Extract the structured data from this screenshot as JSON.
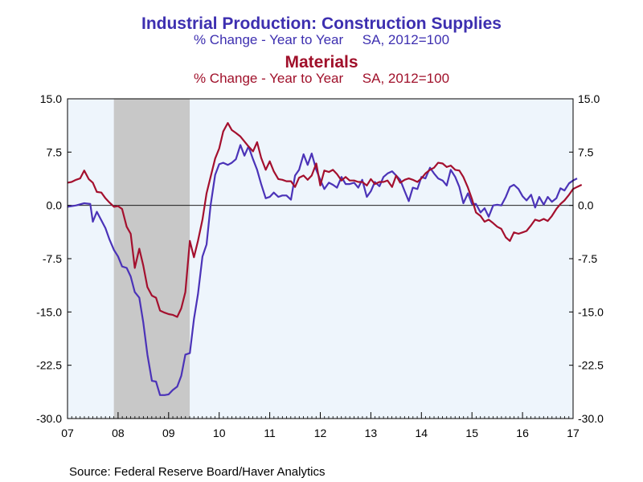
{
  "title_line1": "Industrial Production: Construction Supplies",
  "subtitle_line1": "% Change - Year to Year     SA, 2012=100",
  "title_line2": "Materials",
  "subtitle_line2": "% Change - Year to Year     SA, 2012=100",
  "source": "Source:  Federal Reserve Board/Haver Analytics",
  "colors": {
    "construction_supplies": "#4b33b8",
    "materials": "#a4102e",
    "recession": "#c8c8c8",
    "plot_bg": "#eef5fc"
  },
  "chart_data": {
    "type": "line",
    "title": "Industrial Production: Construction Supplies",
    "ylim": [
      -30,
      15
    ],
    "xlim": [
      2007.0,
      2017.0
    ],
    "y_ticks": [
      "15.0",
      "7.5",
      "0.0",
      "-7.5",
      "-15.0",
      "-22.5",
      "-30.0"
    ],
    "x_tick_labels": [
      "07",
      "08",
      "09",
      "10",
      "11",
      "12",
      "13",
      "14",
      "15",
      "16",
      "17"
    ],
    "recession": [
      2007.917,
      2009.417
    ],
    "zero_line": true,
    "series": [
      {
        "name": "Industrial Production: Construction Supplies",
        "color": "#4b33b8",
        "points": [
          [
            2007.0,
            -0.2
          ],
          [
            2007.17,
            0.0
          ],
          [
            2007.33,
            0.3
          ],
          [
            2007.45,
            0.2
          ],
          [
            2007.5,
            -2.3
          ],
          [
            2007.58,
            -0.9
          ],
          [
            2007.75,
            -3.2
          ],
          [
            2007.83,
            -4.8
          ],
          [
            2007.92,
            -6.3
          ],
          [
            2008.0,
            -7.2
          ],
          [
            2008.08,
            -8.6
          ],
          [
            2008.17,
            -8.8
          ],
          [
            2008.25,
            -10.0
          ],
          [
            2008.33,
            -12.2
          ],
          [
            2008.42,
            -13.0
          ],
          [
            2008.5,
            -16.5
          ],
          [
            2008.58,
            -21.0
          ],
          [
            2008.67,
            -24.7
          ],
          [
            2008.75,
            -24.8
          ],
          [
            2008.83,
            -26.7
          ],
          [
            2008.92,
            -26.7
          ],
          [
            2009.0,
            -26.6
          ],
          [
            2009.08,
            -26.0
          ],
          [
            2009.17,
            -25.5
          ],
          [
            2009.25,
            -24.0
          ],
          [
            2009.33,
            -21.0
          ],
          [
            2009.42,
            -20.8
          ],
          [
            2009.5,
            -16.0
          ],
          [
            2009.58,
            -12.5
          ],
          [
            2009.67,
            -7.2
          ],
          [
            2009.75,
            -5.5
          ],
          [
            2009.83,
            0.0
          ],
          [
            2009.92,
            4.3
          ],
          [
            2010.0,
            5.8
          ],
          [
            2010.08,
            6.0
          ],
          [
            2010.17,
            5.7
          ],
          [
            2010.25,
            6.0
          ],
          [
            2010.33,
            6.5
          ],
          [
            2010.42,
            8.5
          ],
          [
            2010.5,
            7.0
          ],
          [
            2010.58,
            8.3
          ],
          [
            2010.67,
            6.5
          ],
          [
            2010.75,
            5.0
          ],
          [
            2010.83,
            3.0
          ],
          [
            2010.92,
            1.0
          ],
          [
            2011.0,
            1.2
          ],
          [
            2011.08,
            1.8
          ],
          [
            2011.17,
            1.2
          ],
          [
            2011.25,
            1.4
          ],
          [
            2011.33,
            1.4
          ],
          [
            2011.42,
            0.8
          ],
          [
            2011.5,
            4.2
          ],
          [
            2011.58,
            5.0
          ],
          [
            2011.67,
            7.2
          ],
          [
            2011.75,
            5.7
          ],
          [
            2011.83,
            7.3
          ],
          [
            2011.92,
            5.0
          ],
          [
            2012.0,
            3.6
          ],
          [
            2012.08,
            2.3
          ],
          [
            2012.17,
            3.2
          ],
          [
            2012.25,
            2.9
          ],
          [
            2012.33,
            2.5
          ],
          [
            2012.42,
            4.0
          ],
          [
            2012.5,
            3.0
          ],
          [
            2012.58,
            3.0
          ],
          [
            2012.67,
            3.2
          ],
          [
            2012.75,
            2.5
          ],
          [
            2012.83,
            3.6
          ],
          [
            2012.92,
            1.2
          ],
          [
            2013.0,
            2.0
          ],
          [
            2013.08,
            3.3
          ],
          [
            2013.17,
            2.7
          ],
          [
            2013.25,
            4.0
          ],
          [
            2013.33,
            4.5
          ],
          [
            2013.42,
            4.8
          ],
          [
            2013.5,
            4.2
          ],
          [
            2013.58,
            3.6
          ],
          [
            2013.67,
            2.0
          ],
          [
            2013.75,
            0.6
          ],
          [
            2013.83,
            2.5
          ],
          [
            2013.92,
            2.3
          ],
          [
            2014.0,
            4.0
          ],
          [
            2014.08,
            3.8
          ],
          [
            2014.17,
            5.3
          ],
          [
            2014.25,
            4.5
          ],
          [
            2014.33,
            3.8
          ],
          [
            2014.42,
            3.5
          ],
          [
            2014.5,
            2.8
          ],
          [
            2014.58,
            5.0
          ],
          [
            2014.67,
            4.0
          ],
          [
            2014.75,
            2.6
          ],
          [
            2014.83,
            0.3
          ],
          [
            2014.92,
            1.7
          ],
          [
            2015.0,
            0.2
          ],
          [
            2015.08,
            0.2
          ],
          [
            2015.17,
            -1.0
          ],
          [
            2015.25,
            -0.4
          ],
          [
            2015.33,
            -1.6
          ],
          [
            2015.42,
            0.0
          ],
          [
            2015.5,
            0.1
          ],
          [
            2015.58,
            0.0
          ],
          [
            2015.67,
            1.2
          ],
          [
            2015.75,
            2.6
          ],
          [
            2015.83,
            2.9
          ],
          [
            2015.92,
            2.3
          ],
          [
            2016.0,
            1.3
          ],
          [
            2016.08,
            0.7
          ],
          [
            2016.17,
            1.5
          ],
          [
            2016.25,
            -0.3
          ],
          [
            2016.33,
            1.2
          ],
          [
            2016.42,
            0.1
          ],
          [
            2016.5,
            1.2
          ],
          [
            2016.58,
            0.5
          ],
          [
            2016.67,
            1.0
          ],
          [
            2016.75,
            2.4
          ],
          [
            2016.83,
            2.1
          ],
          [
            2016.92,
            3.1
          ],
          [
            2017.0,
            3.5
          ],
          [
            2017.08,
            3.8
          ]
        ]
      },
      {
        "name": "Materials",
        "color": "#a4102e",
        "points": [
          [
            2007.0,
            3.2
          ],
          [
            2007.08,
            3.3
          ],
          [
            2007.17,
            3.6
          ],
          [
            2007.25,
            3.8
          ],
          [
            2007.33,
            4.9
          ],
          [
            2007.42,
            3.7
          ],
          [
            2007.5,
            3.2
          ],
          [
            2007.58,
            1.9
          ],
          [
            2007.67,
            1.8
          ],
          [
            2007.75,
            1.0
          ],
          [
            2007.83,
            0.4
          ],
          [
            2007.92,
            -0.2
          ],
          [
            2008.0,
            -0.1
          ],
          [
            2008.08,
            -0.5
          ],
          [
            2008.17,
            -3.0
          ],
          [
            2008.25,
            -4.0
          ],
          [
            2008.33,
            -8.8
          ],
          [
            2008.42,
            -6.1
          ],
          [
            2008.5,
            -8.5
          ],
          [
            2008.58,
            -11.5
          ],
          [
            2008.67,
            -12.7
          ],
          [
            2008.75,
            -13.0
          ],
          [
            2008.83,
            -14.8
          ],
          [
            2008.92,
            -15.1
          ],
          [
            2009.0,
            -15.3
          ],
          [
            2009.08,
            -15.4
          ],
          [
            2009.17,
            -15.7
          ],
          [
            2009.25,
            -14.5
          ],
          [
            2009.33,
            -12.2
          ],
          [
            2009.42,
            -5.0
          ],
          [
            2009.5,
            -7.3
          ],
          [
            2009.58,
            -5.0
          ],
          [
            2009.67,
            -2.0
          ],
          [
            2009.75,
            1.7
          ],
          [
            2009.83,
            4.0
          ],
          [
            2009.92,
            6.6
          ],
          [
            2010.0,
            8.0
          ],
          [
            2010.08,
            10.4
          ],
          [
            2010.17,
            11.6
          ],
          [
            2010.25,
            10.6
          ],
          [
            2010.33,
            10.2
          ],
          [
            2010.42,
            9.7
          ],
          [
            2010.5,
            9.0
          ],
          [
            2010.58,
            8.3
          ],
          [
            2010.67,
            7.6
          ],
          [
            2010.75,
            8.9
          ],
          [
            2010.83,
            6.7
          ],
          [
            2010.92,
            5.0
          ],
          [
            2011.0,
            6.2
          ],
          [
            2011.08,
            4.8
          ],
          [
            2011.17,
            3.7
          ],
          [
            2011.25,
            3.6
          ],
          [
            2011.33,
            3.4
          ],
          [
            2011.42,
            3.4
          ],
          [
            2011.5,
            2.6
          ],
          [
            2011.58,
            3.9
          ],
          [
            2011.67,
            4.2
          ],
          [
            2011.75,
            3.6
          ],
          [
            2011.83,
            4.2
          ],
          [
            2011.92,
            5.9
          ],
          [
            2012.0,
            2.8
          ],
          [
            2012.08,
            4.9
          ],
          [
            2012.17,
            4.7
          ],
          [
            2012.25,
            5.0
          ],
          [
            2012.33,
            4.4
          ],
          [
            2012.42,
            3.5
          ],
          [
            2012.5,
            4.0
          ],
          [
            2012.58,
            3.5
          ],
          [
            2012.67,
            3.5
          ],
          [
            2012.75,
            3.3
          ],
          [
            2012.83,
            3.3
          ],
          [
            2012.92,
            2.8
          ],
          [
            2013.0,
            3.7
          ],
          [
            2013.08,
            3.0
          ],
          [
            2013.17,
            3.3
          ],
          [
            2013.25,
            3.3
          ],
          [
            2013.33,
            3.5
          ],
          [
            2013.42,
            2.6
          ],
          [
            2013.5,
            4.2
          ],
          [
            2013.58,
            3.2
          ],
          [
            2013.67,
            3.6
          ],
          [
            2013.75,
            3.8
          ],
          [
            2013.83,
            3.6
          ],
          [
            2013.92,
            3.3
          ],
          [
            2014.0,
            3.8
          ],
          [
            2014.08,
            4.5
          ],
          [
            2014.17,
            5.0
          ],
          [
            2014.25,
            5.3
          ],
          [
            2014.33,
            6.0
          ],
          [
            2014.42,
            5.9
          ],
          [
            2014.5,
            5.4
          ],
          [
            2014.58,
            5.6
          ],
          [
            2014.67,
            5.0
          ],
          [
            2014.75,
            4.9
          ],
          [
            2014.83,
            4.0
          ],
          [
            2014.92,
            2.5
          ],
          [
            2015.0,
            0.9
          ],
          [
            2015.08,
            -1.0
          ],
          [
            2015.17,
            -1.5
          ],
          [
            2015.25,
            -2.3
          ],
          [
            2015.33,
            -2.0
          ],
          [
            2015.42,
            -2.5
          ],
          [
            2015.5,
            -3.0
          ],
          [
            2015.58,
            -3.3
          ],
          [
            2015.67,
            -4.5
          ],
          [
            2015.75,
            -5.0
          ],
          [
            2015.83,
            -3.8
          ],
          [
            2015.92,
            -4.0
          ],
          [
            2016.0,
            -3.8
          ],
          [
            2016.08,
            -3.6
          ],
          [
            2016.17,
            -2.8
          ],
          [
            2016.25,
            -2.0
          ],
          [
            2016.33,
            -2.2
          ],
          [
            2016.42,
            -1.9
          ],
          [
            2016.5,
            -2.2
          ],
          [
            2016.58,
            -1.5
          ],
          [
            2016.67,
            -0.5
          ],
          [
            2016.75,
            0.2
          ],
          [
            2016.83,
            0.7
          ],
          [
            2016.92,
            1.5
          ],
          [
            2017.0,
            2.3
          ],
          [
            2017.08,
            2.6
          ],
          [
            2017.17,
            2.9
          ]
        ]
      }
    ]
  }
}
